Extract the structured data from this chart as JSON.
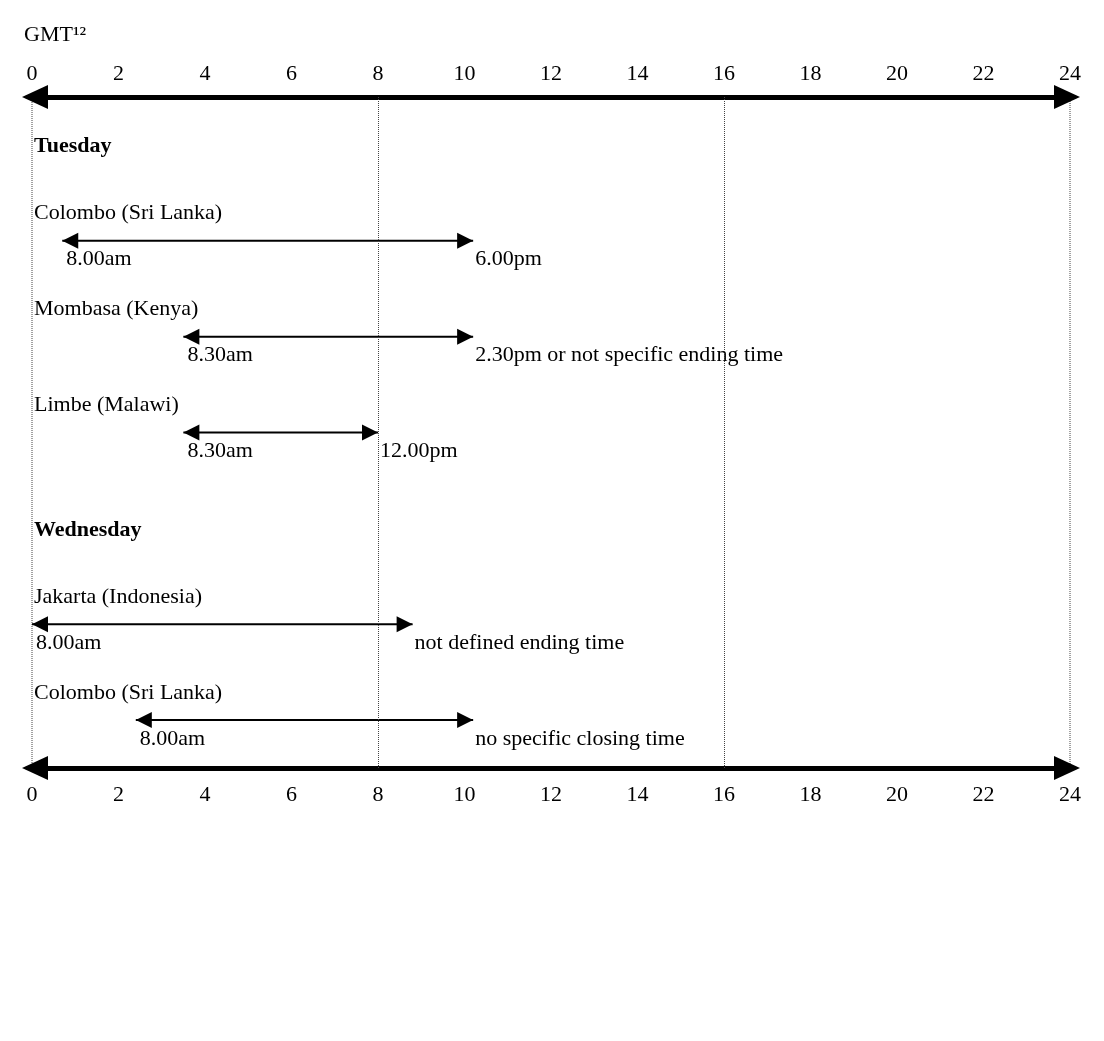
{
  "chart_data": {
    "type": "bar",
    "orientation": "horizontal",
    "color": "#000000",
    "categories": [
      "Tuesday",
      "Colombo (Sri Lanka)",
      "Mombasa (Kenya)",
      "Limbe (Malawi)",
      "Wednesday",
      "Jakarta (Indonesia)",
      "Colombo (Sri Lanka)"
    ],
    "base": [
      null,
      0.7,
      3.5,
      3.5,
      null,
      0,
      2.4
    ],
    "values": [
      null,
      9.5,
      6.7,
      4.5,
      null,
      8.8,
      7.8
    ],
    "xlim": [
      0,
      24
    ],
    "xticks": [
      0,
      2,
      4,
      6,
      8,
      10,
      12,
      14,
      16,
      18,
      20,
      22,
      24
    ],
    "x2lim": [
      0,
      24
    ],
    "x2ticks": [
      0,
      2,
      4,
      6,
      8,
      10,
      12,
      14,
      16,
      18,
      20,
      22,
      24
    ],
    "x2label": "GMT¹²",
    "ref_lines": [
      {
        "axis": "x",
        "value": 8
      },
      {
        "axis": "x",
        "value": 16
      }
    ],
    "annotations": [
      "8.00am",
      "6.00pm",
      "8.30am",
      "2.30pm or not specific ending time",
      "8.30am",
      "12.00pm",
      "8.00am",
      "not defined ending time",
      "8.00am",
      "no specific closing time"
    ]
  }
}
